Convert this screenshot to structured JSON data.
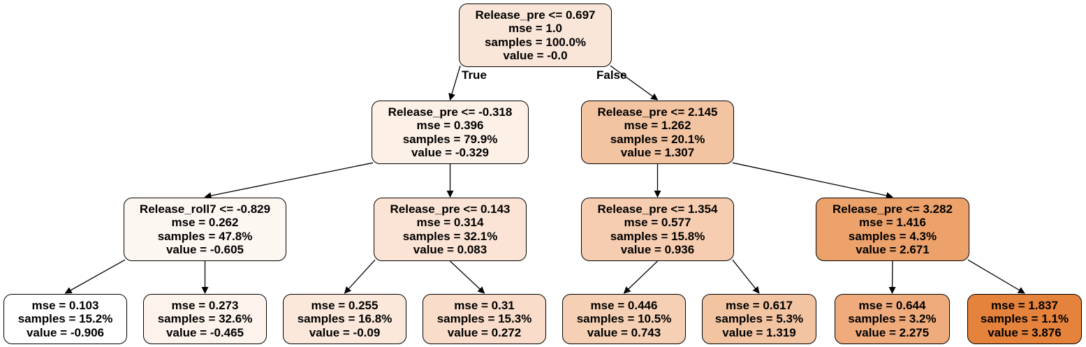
{
  "edge_labels": {
    "true": "True",
    "false": "False"
  },
  "nodes": [
    {
      "split": "Release_pre <= 0.697",
      "mse": "mse = 1.0",
      "samples": "samples = 100.0%",
      "value": "value = -0.0",
      "fill": "#fae6d9"
    },
    {
      "split": "Release_pre <= -0.318",
      "mse": "mse = 0.396",
      "samples": "samples = 79.9%",
      "value": "value = -0.329",
      "fill": "#fdf0e7"
    },
    {
      "split": "Release_pre <= 2.145",
      "mse": "mse = 1.262",
      "samples": "samples = 20.1%",
      "value": "value = 1.307",
      "fill": "#f3c4a2"
    },
    {
      "split": "Release_roll7 <= -0.829",
      "mse": "mse = 0.262",
      "samples": "samples = 47.8%",
      "value": "value = -0.605",
      "fill": "#fdf7f2"
    },
    {
      "split": "Release_pre <= 0.143",
      "mse": "mse = 0.314",
      "samples": "samples = 32.1%",
      "value": "value = 0.083",
      "fill": "#fbe4d5"
    },
    {
      "split": "Release_pre <= 1.354",
      "mse": "mse = 0.577",
      "samples": "samples = 15.8%",
      "value": "value = 0.936",
      "fill": "#f6cdb0"
    },
    {
      "split": "Release_pre <= 3.282",
      "mse": "mse = 1.416",
      "samples": "samples = 4.3%",
      "value": "value = 2.671",
      "fill": "#eda26b"
    },
    {
      "split": "",
      "mse": "mse = 0.103",
      "samples": "samples = 15.2%",
      "value": "value = -0.906",
      "fill": "#ffffff"
    },
    {
      "split": "",
      "mse": "mse = 0.273",
      "samples": "samples = 32.6%",
      "value": "value = -0.465",
      "fill": "#fdf3ec"
    },
    {
      "split": "",
      "mse": "mse = 0.255",
      "samples": "samples = 16.8%",
      "value": "value = -0.09",
      "fill": "#fbe8db"
    },
    {
      "split": "",
      "mse": "mse = 0.31",
      "samples": "samples = 15.3%",
      "value": "value = 0.272",
      "fill": "#f9dcc9"
    },
    {
      "split": "",
      "mse": "mse = 0.446",
      "samples": "samples = 10.5%",
      "value": "value = 0.743",
      "fill": "#f6d0b4"
    },
    {
      "split": "",
      "mse": "mse = 0.617",
      "samples": "samples = 5.3%",
      "value": "value = 1.319",
      "fill": "#f3c4a2"
    },
    {
      "split": "",
      "mse": "mse = 0.644",
      "samples": "samples = 3.2%",
      "value": "value = 2.275",
      "fill": "#efab7c"
    },
    {
      "split": "",
      "mse": "mse = 1.837",
      "samples": "samples = 1.1%",
      "value": "value = 3.876",
      "fill": "#e5823b"
    }
  ],
  "edges": [
    [
      0,
      1
    ],
    [
      0,
      2
    ],
    [
      1,
      3
    ],
    [
      1,
      4
    ],
    [
      2,
      5
    ],
    [
      2,
      6
    ],
    [
      3,
      7
    ],
    [
      3,
      8
    ],
    [
      4,
      9
    ],
    [
      4,
      10
    ],
    [
      5,
      11
    ],
    [
      5,
      12
    ],
    [
      6,
      13
    ],
    [
      6,
      14
    ]
  ]
}
